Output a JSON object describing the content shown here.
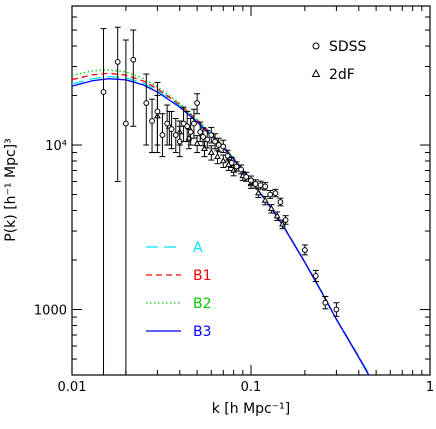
{
  "chart_data": {
    "type": "scatter",
    "title": "",
    "xlabel": "k [h Mpc⁻¹]",
    "ylabel": "P(k) [h⁻¹ Mpc]³",
    "xscale": "log",
    "yscale": "log",
    "xlim": [
      0.01,
      1
    ],
    "ylim": [
      400,
      70000
    ],
    "x_ticks": [
      {
        "value": 0.01,
        "label": "0.01"
      },
      {
        "value": 0.1,
        "label": "0.1"
      },
      {
        "value": 1,
        "label": "1"
      }
    ],
    "y_ticks": [
      {
        "value": 1000,
        "label": "1000"
      },
      {
        "value": 10000,
        "label": "10⁴"
      }
    ],
    "grid": false,
    "marker_legend": {
      "placement": "top-right",
      "entries": [
        {
          "name": "SDSS",
          "marker": "circle"
        },
        {
          "name": "2dF",
          "marker": "triangle"
        }
      ]
    },
    "line_legend": {
      "placement": "lower-left",
      "entries": [
        {
          "name": "A",
          "color": "#00e5ff",
          "dash": "long-dash"
        },
        {
          "name": "B1",
          "color": "#ff0000",
          "dash": "dash"
        },
        {
          "name": "B2",
          "color": "#00cc00",
          "dash": "dot"
        },
        {
          "name": "B3",
          "color": "#0000ff",
          "dash": "solid"
        }
      ]
    },
    "series": [
      {
        "name": "A",
        "color": "#00e5ff",
        "x": [
          0.01,
          0.013,
          0.016,
          0.02,
          0.025,
          0.03,
          0.04,
          0.05,
          0.06,
          0.07,
          0.08,
          0.1,
          0.12,
          0.15,
          0.2,
          0.25,
          0.3,
          0.4,
          0.5
        ],
        "y": [
          23500,
          25300,
          26100,
          25600,
          23800,
          21500,
          17300,
          14000,
          11600,
          9800,
          8300,
          6100,
          4700,
          3300,
          1950,
          1270,
          880,
          520,
          340
        ]
      },
      {
        "name": "B1",
        "color": "#ff0000",
        "x": [
          0.01,
          0.013,
          0.016,
          0.02,
          0.025,
          0.03,
          0.04,
          0.05,
          0.06,
          0.07,
          0.08,
          0.1,
          0.12,
          0.15,
          0.2,
          0.25,
          0.3,
          0.4,
          0.5
        ],
        "y": [
          25000,
          26700,
          27300,
          26600,
          24500,
          22000,
          17600,
          14200,
          11700,
          9850,
          8320,
          6100,
          4700,
          3290,
          1945,
          1265,
          875,
          515,
          335
        ]
      },
      {
        "name": "B2",
        "color": "#00cc00",
        "x": [
          0.01,
          0.013,
          0.016,
          0.02,
          0.025,
          0.03,
          0.04,
          0.05,
          0.06,
          0.07,
          0.08,
          0.1,
          0.12,
          0.15,
          0.2,
          0.25,
          0.3,
          0.4,
          0.5
        ],
        "y": [
          26500,
          28200,
          28700,
          27800,
          25400,
          22600,
          17900,
          14300,
          11800,
          9900,
          8350,
          6100,
          4700,
          3290,
          1940,
          1260,
          870,
          512,
          333
        ]
      },
      {
        "name": "B3",
        "color": "#0000ff",
        "x": [
          0.01,
          0.013,
          0.016,
          0.02,
          0.025,
          0.03,
          0.04,
          0.05,
          0.06,
          0.07,
          0.08,
          0.1,
          0.12,
          0.15,
          0.2,
          0.25,
          0.3,
          0.4,
          0.5
        ],
        "y": [
          22800,
          24600,
          25300,
          24900,
          23200,
          21000,
          17000,
          13800,
          11400,
          9650,
          8200,
          6050,
          4650,
          3270,
          1930,
          1255,
          870,
          512,
          333
        ]
      }
    ],
    "data_points": {
      "SDSS": {
        "x": [
          0.015,
          0.018,
          0.02,
          0.022,
          0.026,
          0.028,
          0.03,
          0.032,
          0.034,
          0.036,
          0.038,
          0.04,
          0.042,
          0.044,
          0.046,
          0.048,
          0.05,
          0.052,
          0.054,
          0.057,
          0.06,
          0.063,
          0.066,
          0.07,
          0.074,
          0.078,
          0.083,
          0.088,
          0.094,
          0.1,
          0.106,
          0.113,
          0.12,
          0.128,
          0.137,
          0.146,
          0.156,
          0.2,
          0.23,
          0.26,
          0.3
        ],
        "y": [
          21000,
          32000,
          13500,
          33000,
          18000,
          14000,
          16000,
          11500,
          13500,
          12500,
          11500,
          10500,
          13500,
          13000,
          12000,
          13500,
          18000,
          12000,
          11200,
          10800,
          11500,
          10500,
          10000,
          9800,
          8600,
          7800,
          7400,
          7100,
          6400,
          6100,
          5800,
          5700,
          5600,
          5000,
          5100,
          4500,
          3500,
          2300,
          1600,
          1100,
          1000
        ],
        "yerr": [
          [
            20600,
            30000
          ],
          [
            26000,
            20000
          ],
          [
            13100,
            30000
          ],
          [
            20000,
            17000
          ],
          [
            8000,
            9000
          ],
          [
            5000,
            5000
          ],
          [
            7000,
            8000
          ],
          [
            3000,
            4000
          ],
          [
            3500,
            4000
          ],
          [
            3000,
            3500
          ],
          [
            2500,
            3000
          ],
          [
            2000,
            2500
          ],
          [
            3000,
            3500
          ],
          [
            2500,
            3000
          ],
          [
            2000,
            2500
          ],
          [
            2500,
            3000
          ],
          [
            2500,
            2500
          ],
          [
            1500,
            1800
          ],
          [
            1300,
            1500
          ],
          [
            1200,
            1400
          ],
          [
            1200,
            1300
          ],
          [
            1000,
            1200
          ],
          [
            900,
            1000
          ],
          [
            800,
            900
          ],
          [
            600,
            700
          ],
          [
            500,
            600
          ],
          [
            450,
            500
          ],
          [
            420,
            460
          ],
          [
            380,
            420
          ],
          [
            340,
            380
          ],
          [
            320,
            350
          ],
          [
            300,
            330
          ],
          [
            280,
            310
          ],
          [
            260,
            290
          ],
          [
            250,
            280
          ],
          [
            230,
            250
          ],
          [
            200,
            220
          ],
          [
            150,
            170
          ],
          [
            120,
            130
          ],
          [
            90,
            100
          ],
          [
            90,
            100
          ]
        ]
      },
      "2dF": {
        "x": [
          0.03,
          0.035,
          0.04,
          0.045,
          0.05,
          0.055,
          0.06,
          0.065,
          0.07,
          0.075,
          0.08,
          0.09,
          0.1,
          0.11,
          0.12,
          0.13,
          0.14,
          0.15
        ],
        "y": [
          15000,
          13000,
          12000,
          11000,
          10200,
          9500,
          9000,
          8500,
          8000,
          7600,
          7000,
          6500,
          5800,
          5100,
          4600,
          4100,
          3700,
          3300
        ],
        "yerr": [
          [
            5000,
            5000
          ],
          [
            3000,
            3000
          ],
          [
            2000,
            2000
          ],
          [
            1500,
            1500
          ],
          [
            1200,
            1200
          ],
          [
            1000,
            1000
          ],
          [
            900,
            900
          ],
          [
            800,
            800
          ],
          [
            700,
            700
          ],
          [
            600,
            600
          ],
          [
            500,
            500
          ],
          [
            400,
            400
          ],
          [
            350,
            350
          ],
          [
            300,
            300
          ],
          [
            270,
            270
          ],
          [
            240,
            240
          ],
          [
            220,
            220
          ],
          [
            200,
            200
          ]
        ]
      }
    }
  }
}
